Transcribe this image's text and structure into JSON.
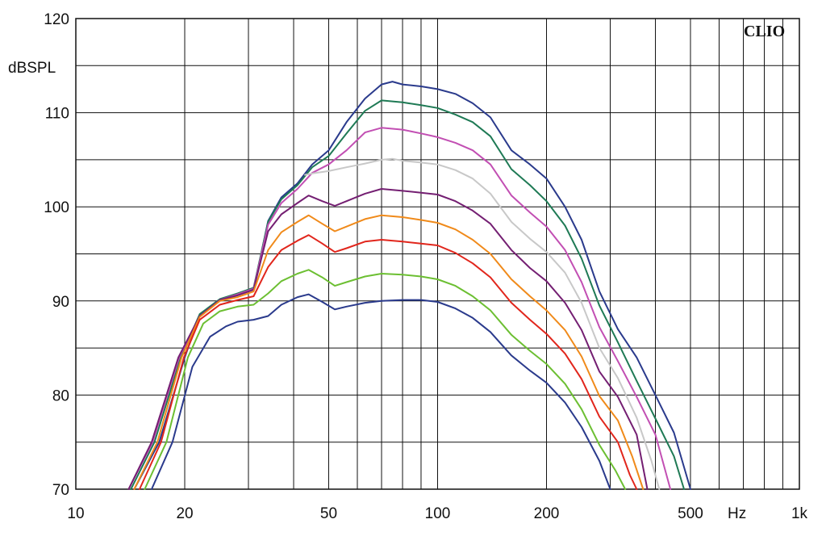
{
  "brand": "CLIO",
  "chart_data": {
    "type": "line",
    "xscale": "log",
    "xlim": [
      10,
      1000
    ],
    "ylim": [
      70,
      120
    ],
    "ylabel": "dBSPL",
    "xlabel": "Hz",
    "grid": true,
    "x_tick_labels": [
      {
        "value": 10,
        "label": "10"
      },
      {
        "value": 20,
        "label": "20"
      },
      {
        "value": 50,
        "label": "50"
      },
      {
        "value": 100,
        "label": "100"
      },
      {
        "value": 200,
        "label": "200"
      },
      {
        "value": 500,
        "label": "500"
      },
      {
        "value": 1000,
        "label": "1k"
      }
    ],
    "y_tick_labels": [
      {
        "value": 120,
        "label": "120"
      },
      {
        "value": 110,
        "label": "110"
      },
      {
        "value": 100,
        "label": "100"
      },
      {
        "value": 90,
        "label": "90"
      },
      {
        "value": 80,
        "label": "80"
      },
      {
        "value": 70,
        "label": "70"
      }
    ],
    "series": [
      {
        "color": "#2a3a8c",
        "points": [
          [
            14.5,
            70
          ],
          [
            17,
            75
          ],
          [
            20,
            84
          ],
          [
            22,
            88.5
          ],
          [
            25,
            90
          ],
          [
            28,
            90.6
          ],
          [
            31,
            91.2
          ],
          [
            34,
            98.5
          ],
          [
            37,
            101
          ],
          [
            41,
            102.5
          ],
          [
            45,
            104.5
          ],
          [
            50,
            106
          ],
          [
            56,
            109
          ],
          [
            63,
            111.5
          ],
          [
            70,
            113
          ],
          [
            75,
            113.3
          ],
          [
            80,
            113
          ],
          [
            90,
            112.8
          ],
          [
            100,
            112.5
          ],
          [
            112,
            112
          ],
          [
            125,
            111
          ],
          [
            140,
            109.5
          ],
          [
            160,
            106
          ],
          [
            180,
            104.5
          ],
          [
            200,
            103
          ],
          [
            225,
            100
          ],
          [
            250,
            96.5
          ],
          [
            280,
            91
          ],
          [
            315,
            87
          ],
          [
            355,
            84
          ],
          [
            400,
            80
          ],
          [
            450,
            76
          ],
          [
            500,
            70
          ]
        ]
      },
      {
        "color": "#1f7a55",
        "points": [
          [
            14.2,
            70
          ],
          [
            16.5,
            75
          ],
          [
            19.5,
            84
          ],
          [
            22,
            88.6
          ],
          [
            25,
            90.2
          ],
          [
            28,
            90.8
          ],
          [
            31,
            91.4
          ],
          [
            34,
            98.4
          ],
          [
            37,
            100.8
          ],
          [
            41,
            102.3
          ],
          [
            45,
            104.2
          ],
          [
            50,
            105.4
          ],
          [
            56,
            107.8
          ],
          [
            63,
            110.2
          ],
          [
            70,
            111.3
          ],
          [
            80,
            111.1
          ],
          [
            90,
            110.8
          ],
          [
            100,
            110.5
          ],
          [
            112,
            109.8
          ],
          [
            125,
            109
          ],
          [
            140,
            107.5
          ],
          [
            160,
            104
          ],
          [
            180,
            102.3
          ],
          [
            200,
            100.6
          ],
          [
            225,
            98
          ],
          [
            250,
            94.5
          ],
          [
            280,
            89.5
          ],
          [
            315,
            85.6
          ],
          [
            355,
            81.5
          ],
          [
            400,
            77.5
          ],
          [
            450,
            73.5
          ],
          [
            480,
            70
          ]
        ]
      },
      {
        "color": "#c24fb3",
        "points": [
          [
            14,
            70
          ],
          [
            16.3,
            75
          ],
          [
            19.3,
            84
          ],
          [
            22,
            88.4
          ],
          [
            25,
            90.1
          ],
          [
            28,
            90.7
          ],
          [
            31,
            91.3
          ],
          [
            34,
            98.1
          ],
          [
            37,
            100.4
          ],
          [
            41,
            101.9
          ],
          [
            45,
            103.6
          ],
          [
            50,
            104.5
          ],
          [
            56,
            106
          ],
          [
            63,
            107.9
          ],
          [
            70,
            108.4
          ],
          [
            80,
            108.2
          ],
          [
            90,
            107.8
          ],
          [
            100,
            107.4
          ],
          [
            112,
            106.8
          ],
          [
            125,
            106
          ],
          [
            140,
            104.5
          ],
          [
            160,
            101.2
          ],
          [
            180,
            99.4
          ],
          [
            200,
            97.9
          ],
          [
            225,
            95.4
          ],
          [
            250,
            92
          ],
          [
            280,
            87.2
          ],
          [
            315,
            83.6
          ],
          [
            355,
            79.8
          ],
          [
            400,
            75.8
          ],
          [
            440,
            70
          ]
        ]
      },
      {
        "color": "#c8c8c8",
        "points": [
          [
            43,
            103.4
          ],
          [
            46,
            103.6
          ],
          [
            50,
            103.8
          ],
          [
            56,
            104.2
          ],
          [
            63,
            104.6
          ],
          [
            70,
            105
          ],
          [
            75,
            105.1
          ],
          [
            80,
            104.9
          ],
          [
            90,
            104.7
          ],
          [
            100,
            104.5
          ],
          [
            112,
            103.9
          ],
          [
            125,
            103
          ],
          [
            140,
            101.4
          ],
          [
            160,
            98.4
          ],
          [
            180,
            96.6
          ],
          [
            200,
            95.2
          ],
          [
            225,
            93
          ],
          [
            250,
            89.8
          ],
          [
            280,
            85
          ],
          [
            315,
            81.8
          ],
          [
            355,
            77.6
          ],
          [
            390,
            73
          ],
          [
            410,
            70
          ]
        ]
      },
      {
        "color": "#741f72",
        "points": [
          [
            14,
            70
          ],
          [
            16.2,
            75
          ],
          [
            19.2,
            84
          ],
          [
            22,
            88.4
          ],
          [
            25,
            90.1
          ],
          [
            28,
            90.6
          ],
          [
            31,
            91.2
          ],
          [
            34,
            97.4
          ],
          [
            37,
            99.2
          ],
          [
            41,
            100.4
          ],
          [
            44,
            101.2
          ],
          [
            48,
            100.6
          ],
          [
            52,
            100.1
          ],
          [
            56,
            100.6
          ],
          [
            63,
            101.4
          ],
          [
            70,
            101.9
          ],
          [
            80,
            101.7
          ],
          [
            90,
            101.5
          ],
          [
            100,
            101.3
          ],
          [
            112,
            100.6
          ],
          [
            125,
            99.6
          ],
          [
            140,
            98.2
          ],
          [
            160,
            95.4
          ],
          [
            180,
            93.5
          ],
          [
            200,
            92.1
          ],
          [
            225,
            89.8
          ],
          [
            250,
            86.9
          ],
          [
            280,
            82.5
          ],
          [
            315,
            79.8
          ],
          [
            355,
            75.8
          ],
          [
            380,
            70
          ]
        ]
      },
      {
        "color": "#f08a1a",
        "points": [
          [
            14.5,
            70
          ],
          [
            16.8,
            75
          ],
          [
            19.6,
            84
          ],
          [
            22,
            88.3
          ],
          [
            25,
            90
          ],
          [
            28,
            90.4
          ],
          [
            31,
            91
          ],
          [
            34,
            95.4
          ],
          [
            37,
            97.3
          ],
          [
            41,
            98.4
          ],
          [
            44,
            99.1
          ],
          [
            48,
            98.2
          ],
          [
            52,
            97.4
          ],
          [
            56,
            97.9
          ],
          [
            63,
            98.7
          ],
          [
            70,
            99.1
          ],
          [
            80,
            98.9
          ],
          [
            90,
            98.6
          ],
          [
            100,
            98.3
          ],
          [
            112,
            97.6
          ],
          [
            125,
            96.5
          ],
          [
            140,
            95
          ],
          [
            160,
            92.3
          ],
          [
            180,
            90.5
          ],
          [
            200,
            89
          ],
          [
            225,
            86.9
          ],
          [
            250,
            84.1
          ],
          [
            280,
            79.9
          ],
          [
            315,
            77.3
          ],
          [
            345,
            73.5
          ],
          [
            370,
            70
          ]
        ]
      },
      {
        "color": "#e1261c",
        "points": [
          [
            15,
            70
          ],
          [
            17.2,
            75
          ],
          [
            19.9,
            84
          ],
          [
            22,
            88
          ],
          [
            25,
            89.6
          ],
          [
            28,
            90.1
          ],
          [
            31,
            90.5
          ],
          [
            34,
            93.6
          ],
          [
            37,
            95.4
          ],
          [
            41,
            96.4
          ],
          [
            44,
            97
          ],
          [
            48,
            96.1
          ],
          [
            52,
            95.2
          ],
          [
            56,
            95.6
          ],
          [
            63,
            96.3
          ],
          [
            70,
            96.5
          ],
          [
            80,
            96.3
          ],
          [
            90,
            96.1
          ],
          [
            100,
            95.9
          ],
          [
            112,
            95.1
          ],
          [
            125,
            94
          ],
          [
            140,
            92.5
          ],
          [
            160,
            89.8
          ],
          [
            180,
            88
          ],
          [
            200,
            86.5
          ],
          [
            225,
            84.4
          ],
          [
            250,
            81.7
          ],
          [
            280,
            77.7
          ],
          [
            315,
            75
          ],
          [
            340,
            71.5
          ],
          [
            355,
            70
          ]
        ]
      },
      {
        "color": "#6cbf32",
        "points": [
          [
            15.5,
            70
          ],
          [
            17.8,
            75
          ],
          [
            20.4,
            84
          ],
          [
            22.5,
            87.6
          ],
          [
            25,
            88.9
          ],
          [
            28,
            89.4
          ],
          [
            31,
            89.6
          ],
          [
            34,
            90.8
          ],
          [
            37,
            92.1
          ],
          [
            41,
            92.9
          ],
          [
            44,
            93.3
          ],
          [
            48,
            92.5
          ],
          [
            52,
            91.6
          ],
          [
            56,
            92
          ],
          [
            63,
            92.6
          ],
          [
            70,
            92.9
          ],
          [
            80,
            92.8
          ],
          [
            90,
            92.6
          ],
          [
            100,
            92.3
          ],
          [
            112,
            91.6
          ],
          [
            125,
            90.5
          ],
          [
            140,
            89
          ],
          [
            160,
            86.4
          ],
          [
            180,
            84.7
          ],
          [
            200,
            83.3
          ],
          [
            225,
            81.2
          ],
          [
            250,
            78.5
          ],
          [
            280,
            74.7
          ],
          [
            310,
            72
          ],
          [
            330,
            70
          ]
        ]
      },
      {
        "color": "#2a3a8c",
        "points": [
          [
            16.2,
            70
          ],
          [
            18.5,
            75
          ],
          [
            21,
            83
          ],
          [
            23.5,
            86.2
          ],
          [
            26,
            87.3
          ],
          [
            28,
            87.8
          ],
          [
            31,
            88
          ],
          [
            34,
            88.4
          ],
          [
            37,
            89.6
          ],
          [
            41,
            90.4
          ],
          [
            44,
            90.7
          ],
          [
            48,
            89.9
          ],
          [
            52,
            89.1
          ],
          [
            56,
            89.4
          ],
          [
            63,
            89.8
          ],
          [
            70,
            90
          ],
          [
            80,
            90.1
          ],
          [
            90,
            90.1
          ],
          [
            100,
            89.9
          ],
          [
            112,
            89.2
          ],
          [
            125,
            88.2
          ],
          [
            140,
            86.7
          ],
          [
            160,
            84.2
          ],
          [
            180,
            82.6
          ],
          [
            200,
            81.3
          ],
          [
            225,
            79.2
          ],
          [
            250,
            76.6
          ],
          [
            280,
            73
          ],
          [
            300,
            70
          ]
        ]
      }
    ]
  }
}
